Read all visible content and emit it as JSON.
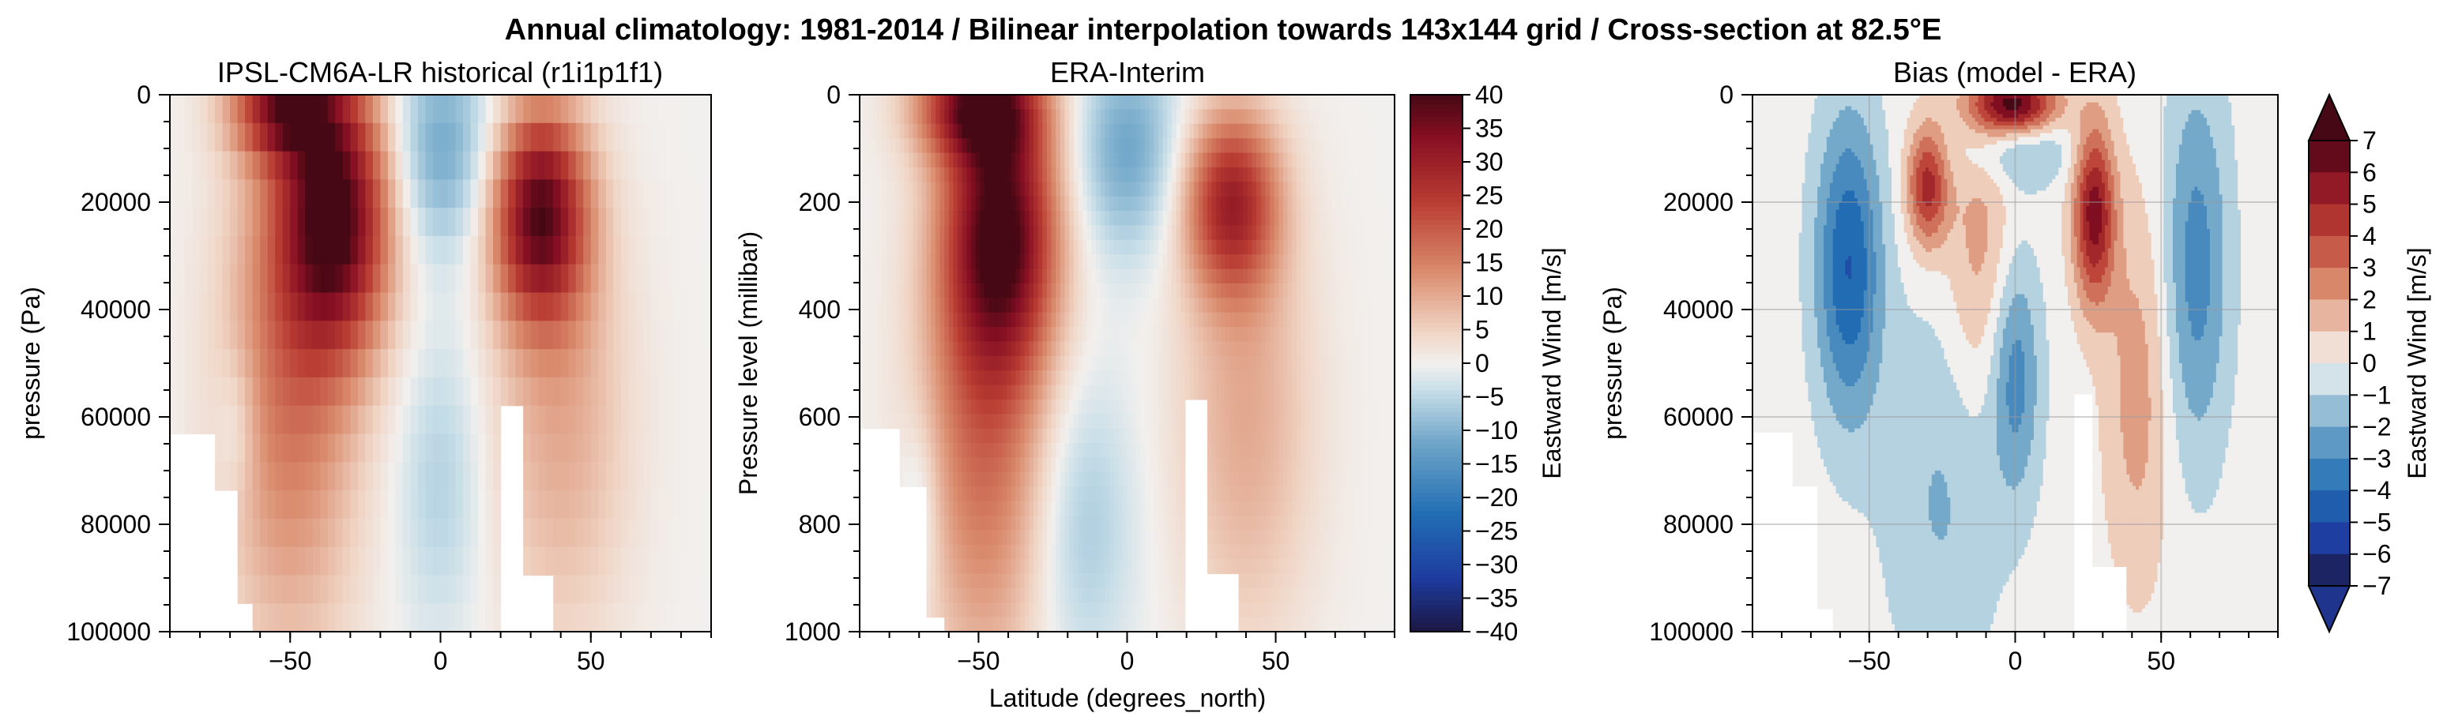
{
  "figure": {
    "title": "Annual climatology: 1981-2014 / Bilinear interpolation towards 143x144 grid / Cross-section at 82.5°E"
  },
  "chart_data": [
    {
      "type": "heatmap",
      "title": "IPSL-CM6A-LR historical (r1i1p1f1)",
      "xlabel": "",
      "ylabel": "pressure (Pa)",
      "xlim": [
        -90,
        90
      ],
      "ylim": [
        100000,
        0
      ],
      "x_ticks": [
        -50,
        0,
        50
      ],
      "y_ticks": [
        0,
        20000,
        40000,
        60000,
        80000,
        100000
      ],
      "x_tick_labels": [
        "−50",
        "0",
        "50"
      ],
      "y_tick_labels": [
        "0",
        "20000",
        "40000",
        "60000",
        "80000",
        "100000"
      ],
      "colormap": "RdBu_r",
      "value_range": [
        -40,
        40
      ],
      "features": [
        {
          "lat": -35,
          "top": 8000,
          "bottom": 35000,
          "peak": 38
        },
        {
          "lat": 33,
          "top": 13000,
          "bottom": 25000,
          "peak": 36
        },
        {
          "lat": 0,
          "top": 0,
          "bottom": 15000,
          "peak": -12
        }
      ]
    },
    {
      "type": "heatmap",
      "title": "ERA-Interim",
      "xlabel": "Latitude (degrees_north)",
      "ylabel": "Pressure level (millibar)",
      "xlim": [
        -90,
        90
      ],
      "ylim": [
        1000,
        0
      ],
      "x_ticks": [
        -50,
        0,
        50
      ],
      "y_ticks": [
        0,
        200,
        400,
        600,
        800,
        1000
      ],
      "x_tick_labels": [
        "−50",
        "0",
        "50"
      ],
      "y_tick_labels": [
        "0",
        "200",
        "400",
        "600",
        "800",
        "1000"
      ],
      "colormap": "RdBu_r",
      "value_range": [
        -40,
        40
      ],
      "colorbar": {
        "label": "Eastward Wind [m/s]",
        "ticks": [
          40,
          35,
          30,
          25,
          20,
          15,
          10,
          5,
          0,
          -5,
          -10,
          -15,
          -20,
          -25,
          -30,
          -35,
          -40
        ],
        "tick_labels": [
          "40",
          "35",
          "30",
          "25",
          "20",
          "15",
          "10",
          "5",
          "0",
          "−5",
          "−10",
          "−15",
          "−20",
          "−25",
          "−30",
          "−35",
          "−40"
        ]
      }
    },
    {
      "type": "heatmap",
      "title": "Bias (model - ERA)",
      "xlabel": "",
      "ylabel": "pressure (Pa)",
      "xlim": [
        -90,
        90
      ],
      "ylim": [
        100000,
        0
      ],
      "x_ticks": [
        -50,
        0,
        50
      ],
      "y_ticks": [
        0,
        20000,
        40000,
        60000,
        80000,
        100000
      ],
      "x_tick_labels": [
        "−50",
        "0",
        "50"
      ],
      "y_tick_labels": [
        "0",
        "20000",
        "40000",
        "60000",
        "80000",
        "100000"
      ],
      "grid": true,
      "colormap": "RdBu_r",
      "value_range": [
        -7,
        7
      ],
      "colorbar": {
        "label": "Eastward Wind [m/s]",
        "ticks": [
          7,
          6,
          5,
          4,
          3,
          2,
          1,
          0,
          -1,
          -2,
          -3,
          -4,
          -5,
          -6,
          -7
        ],
        "tick_labels": [
          "7",
          "6",
          "5",
          "4",
          "3",
          "2",
          "1",
          "0",
          "−1",
          "−2",
          "−3",
          "−4",
          "−5",
          "−6",
          "−7"
        ],
        "extend": "both"
      }
    }
  ]
}
